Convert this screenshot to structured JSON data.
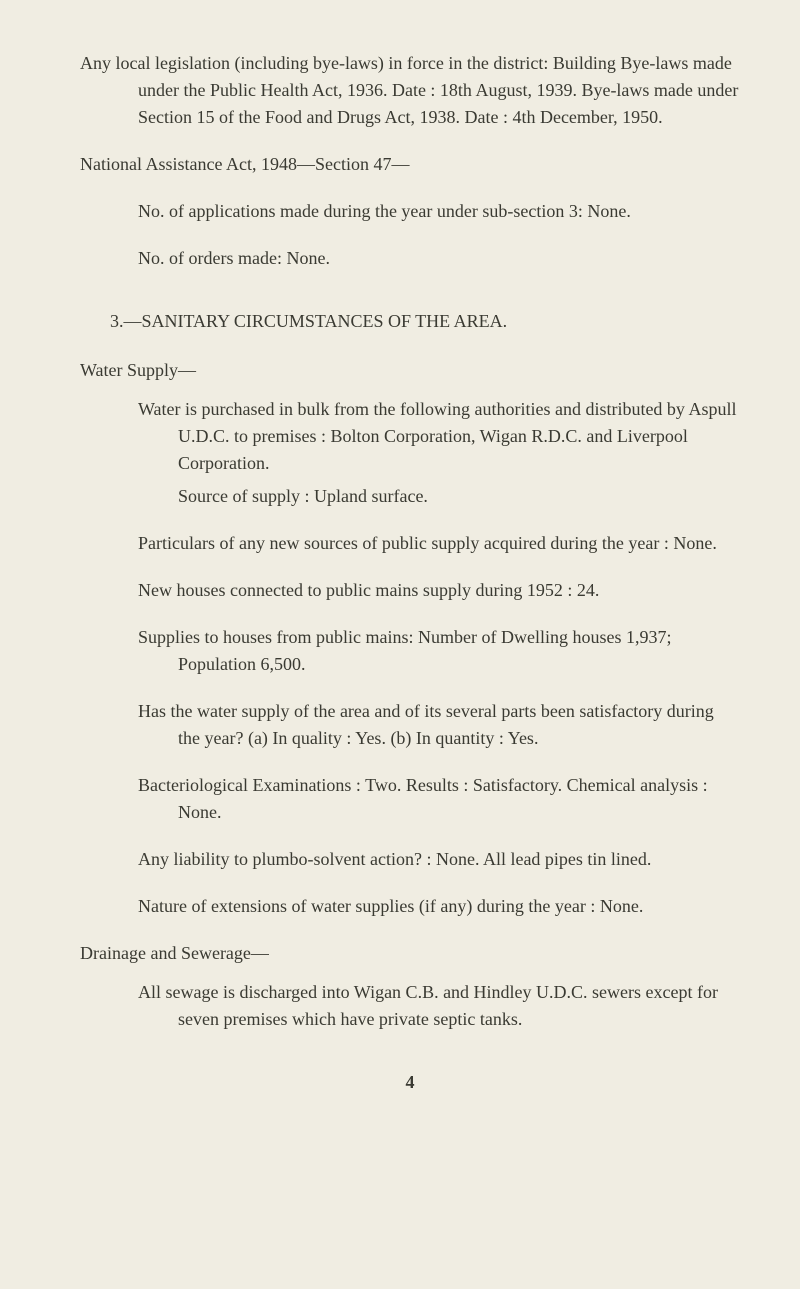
{
  "page": {
    "background_color": "#f0ede2",
    "text_color": "#3a3a32",
    "font_family": "Georgia, 'Times New Roman', serif",
    "base_fontsize": 18
  },
  "p1": "Any local legislation (including bye-laws) in force in the district: Building Bye-laws made under the Public Health Act, 1936. Date : 18th August, 1939. Bye-laws made under Section 15 of the Food and Drugs Act, 1938. Date : 4th December, 1950.",
  "p2": "National Assistance Act, 1948—Section 47—",
  "p3": "No. of applications made during the year under sub-section 3: None.",
  "p4": "No. of orders made: None.",
  "section3": "3.—SANITARY CIRCUMSTANCES OF THE AREA.",
  "water_supply_head": "Water Supply—",
  "ws1": "Water is purchased in bulk from the following authorities and distributed by Aspull U.D.C. to premises : Bolton Corporation, Wigan R.D.C. and Liverpool Corporation.",
  "ws2": "Source of supply : Upland surface.",
  "ws3": "Particulars of any new sources of public supply acquired during the year : None.",
  "ws4": "New houses connected to public mains supply during 1952 : 24.",
  "ws5": "Supplies to houses from public mains: Number of Dwelling houses 1,937; Population 6,500.",
  "ws6": "Has the water supply of the area and of its several parts been satisfactory during the year? (a) In quality : Yes. (b) In quantity : Yes.",
  "ws7": "Bacteriological Examinations : Two. Results : Satisfactory. Chemical analysis : None.",
  "ws8": "Any liability to plumbo-solvent action? : None. All lead pipes tin lined.",
  "ws9": "Nature of extensions of water supplies (if any) during the year : None.",
  "drainage_head": "Drainage and Sewerage—",
  "dr1": "All sewage is discharged into Wigan C.B. and Hindley U.D.C. sewers except for seven premises which have private septic tanks.",
  "pagenum": "4"
}
